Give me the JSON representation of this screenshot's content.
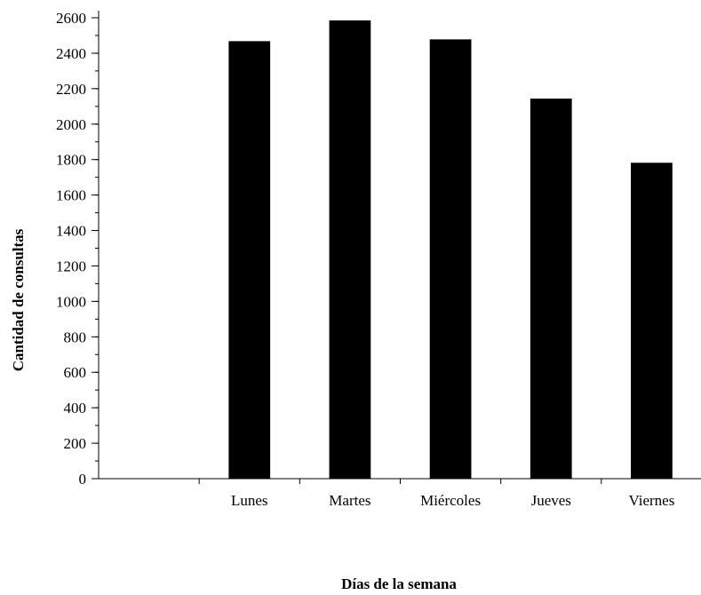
{
  "chart_data": {
    "type": "bar",
    "title": "",
    "xlabel": "Días de la semana",
    "ylabel": "Cantidad de consultas",
    "categories": [
      "",
      "Lunes",
      "Martes",
      "Miércoles",
      "Jueves",
      "Viernes"
    ],
    "values": [
      null,
      2468,
      2585,
      2478,
      2144,
      1782
    ],
    "ylim": [
      0,
      2600
    ],
    "yticks": [
      0,
      200,
      400,
      600,
      800,
      1000,
      1200,
      1400,
      1600,
      1800,
      2000,
      2200,
      2400,
      2600
    ],
    "minor_y_step": 100,
    "grid": false,
    "legend": "none",
    "bar_color": "#000000"
  }
}
